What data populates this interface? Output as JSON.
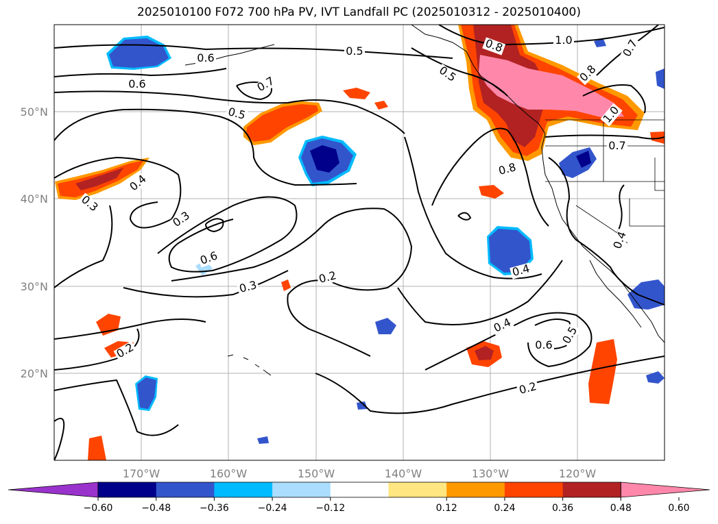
{
  "title": "2025010100 F072 700 hPa PV, IVT Landfall PC (2025010312 - 2025010400)",
  "map": {
    "lat_labels": [
      "50°N",
      "40°N",
      "30°N",
      "20°N"
    ],
    "lon_labels": [
      "170°W",
      "160°W",
      "150°W",
      "140°W",
      "130°W",
      "120°W"
    ],
    "contour_labels": [
      "0.6",
      "0.5",
      "1.0",
      "0.8",
      "0.7",
      "0.6",
      "0.7",
      "0.5",
      "0.5",
      "0.8",
      "1.0",
      "0.7",
      "0.8",
      "0.4",
      "0.3",
      "0.3",
      "0.6",
      "0.3",
      "0.2",
      "0.4",
      "0.4",
      "0.6",
      "0.5",
      "0.2",
      "0.2",
      "0.4"
    ],
    "colors": {
      "neg_060": "#9933cc",
      "neg_048": "#00008b",
      "neg_036": "#3355cc",
      "neg_024": "#00bbff",
      "neg_012": "#aaddff",
      "pos_012": "#ffe680",
      "pos_024": "#ff9900",
      "pos_036": "#ff4400",
      "pos_048": "#b22222",
      "pos_060": "#ff88aa"
    }
  },
  "colorbar": {
    "ticks": [
      "−0.60",
      "−0.48",
      "−0.36",
      "−0.24",
      "−0.12",
      "0.12",
      "0.24",
      "0.36",
      "0.48",
      "0.60"
    ],
    "segment_colors": [
      "#9933cc",
      "#00008b",
      "#3355cc",
      "#00bbff",
      "#aaddff",
      "#ffffff",
      "#ffe680",
      "#ff9900",
      "#ff4400",
      "#b22222",
      "#ff88aa"
    ]
  }
}
